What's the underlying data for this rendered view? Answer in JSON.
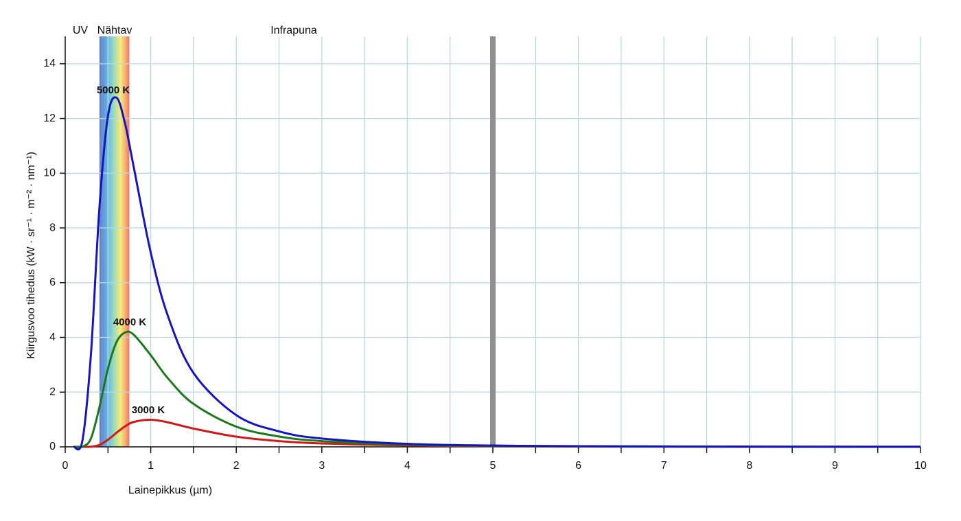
{
  "chart_data": {
    "type": "line",
    "xlabel": "Lainepikkus (µm)",
    "ylabel": "Kiirgusvoo tihedus (kW · sr⁻¹ · m⁻² · nm⁻¹)",
    "region_labels": [
      "UV",
      "Nähtav",
      "Infrapuna"
    ],
    "visible_range": [
      0.4,
      0.75
    ],
    "vline": 5,
    "x": [
      0.1,
      0.2,
      0.3,
      0.4,
      0.5,
      0.6,
      0.7,
      0.8,
      1,
      1.2,
      1.5,
      2,
      2.5,
      3,
      4,
      5,
      6,
      8,
      10
    ],
    "series": [
      {
        "name": "5000 K",
        "color": "#1414c0",
        "values": [
          0,
          0.21,
          3.35,
          8.74,
          12.1,
          12.76,
          11.81,
          10.24,
          7.1,
          4.79,
          2.7,
          1.16,
          0.565,
          0.304,
          0.11,
          0.049,
          0.025,
          0.0084,
          0.0036
        ]
      },
      {
        "name": "4000 K",
        "color": "#1a7a1a",
        "values": [
          0,
          0.006,
          0.3,
          1.45,
          2.86,
          3.83,
          4.18,
          4.1,
          3.35,
          2.51,
          1.57,
          0.74,
          0.379,
          0.211,
          0.08,
          0.036,
          0.019,
          0.0064,
          0.0028
        ]
      },
      {
        "name": "3000 K",
        "color": "#d01818",
        "values": [
          0,
          0,
          0.006,
          0.072,
          0.26,
          0.517,
          0.75,
          0.909,
          0.99,
          0.896,
          0.668,
          0.372,
          0.21,
          0.124,
          0.05,
          0.024,
          0.0125,
          0.0044,
          0.0019
        ]
      }
    ],
    "xlim": [
      0,
      10
    ],
    "xticks": [
      0,
      1,
      2,
      3,
      4,
      5,
      6,
      7,
      8,
      9,
      10
    ],
    "xminorticks": [
      0.5,
      1.5,
      2.5,
      3.5,
      4.5,
      5.5,
      6.5,
      7.5,
      8.5,
      9.5
    ],
    "ylim": [
      0,
      15
    ],
    "yticks": [
      0,
      2,
      4,
      6,
      8,
      10,
      12,
      14
    ],
    "grid": true
  }
}
